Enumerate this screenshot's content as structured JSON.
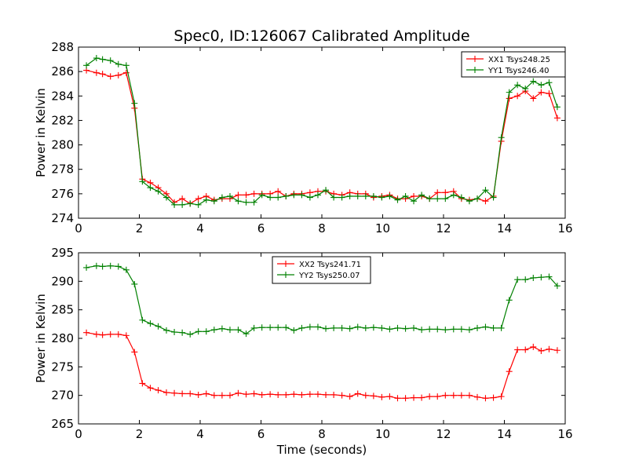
{
  "title": "Spec0, ID:126067 Calibrated Amplitude",
  "chart_data": [
    {
      "type": "line",
      "ylabel": "Power in Kelvin",
      "xlabel": "",
      "xlim": [
        0,
        16
      ],
      "ylim": [
        274,
        288
      ],
      "xticks": [
        "0",
        "2",
        "4",
        "6",
        "8",
        "10",
        "12",
        "14",
        "16"
      ],
      "yticks": [
        "274",
        "276",
        "278",
        "280",
        "282",
        "284",
        "286",
        "288"
      ],
      "grid": false,
      "legend_position": "top-right",
      "x": [
        0.26,
        0.59,
        0.79,
        1.05,
        1.31,
        1.57,
        1.84,
        2.1,
        2.36,
        2.62,
        2.89,
        3.15,
        3.41,
        3.67,
        3.94,
        4.2,
        4.46,
        4.72,
        4.98,
        5.25,
        5.51,
        5.77,
        6.03,
        6.3,
        6.56,
        6.82,
        7.08,
        7.34,
        7.61,
        7.87,
        8.13,
        8.39,
        8.66,
        8.92,
        9.18,
        9.44,
        9.7,
        9.97,
        10.23,
        10.49,
        10.75,
        11.02,
        11.28,
        11.54,
        11.8,
        12.06,
        12.33,
        12.59,
        12.85,
        13.11,
        13.38,
        13.64,
        13.9,
        14.16,
        14.43,
        14.69,
        14.95,
        15.21,
        15.47,
        15.74
      ],
      "series": [
        {
          "name": "XX1 Tsys248.25",
          "color": "#ff0000",
          "values": [
            286.1,
            285.9,
            285.8,
            285.6,
            285.7,
            285.9,
            283.0,
            277.2,
            276.9,
            276.5,
            276.0,
            275.3,
            275.6,
            275.2,
            275.6,
            275.8,
            275.5,
            275.6,
            275.6,
            275.9,
            275.9,
            276.0,
            276.0,
            276.0,
            276.2,
            275.8,
            276.0,
            276.0,
            276.1,
            276.2,
            276.2,
            276.0,
            275.9,
            276.1,
            276.0,
            276.0,
            275.7,
            275.8,
            275.9,
            275.6,
            275.6,
            275.8,
            275.8,
            275.6,
            276.1,
            276.1,
            276.2,
            275.6,
            275.5,
            275.6,
            275.4,
            275.8,
            280.3,
            283.8,
            284.0,
            284.4,
            283.8,
            284.3,
            284.2,
            282.2
          ]
        },
        {
          "name": "YY1 Tsys246.40",
          "color": "#008000",
          "values": [
            286.5,
            287.1,
            287.0,
            286.9,
            286.6,
            286.5,
            283.4,
            277.0,
            276.5,
            276.2,
            275.7,
            275.1,
            275.1,
            275.2,
            275.1,
            275.5,
            275.4,
            275.7,
            275.8,
            275.4,
            275.3,
            275.3,
            275.9,
            275.7,
            275.7,
            275.8,
            275.9,
            275.9,
            275.7,
            275.9,
            276.3,
            275.7,
            275.7,
            275.8,
            275.8,
            275.8,
            275.8,
            275.7,
            275.8,
            275.5,
            275.8,
            275.4,
            275.9,
            275.6,
            275.6,
            275.6,
            275.9,
            275.7,
            275.4,
            275.6,
            276.3,
            275.7,
            280.6,
            284.3,
            284.9,
            284.6,
            285.2,
            284.9,
            285.1,
            283.1
          ]
        }
      ]
    },
    {
      "type": "line",
      "ylabel": "Power in Kelvin",
      "xlabel": "Time (seconds)",
      "xlim": [
        0,
        16
      ],
      "ylim": [
        265,
        295
      ],
      "xticks": [
        "0",
        "2",
        "4",
        "6",
        "8",
        "10",
        "12",
        "14",
        "16"
      ],
      "yticks": [
        "265",
        "270",
        "275",
        "280",
        "285",
        "290",
        "295"
      ],
      "grid": false,
      "legend_position": "top-center",
      "x": [
        0.26,
        0.59,
        0.79,
        1.05,
        1.31,
        1.57,
        1.84,
        2.1,
        2.36,
        2.62,
        2.89,
        3.15,
        3.41,
        3.67,
        3.94,
        4.2,
        4.46,
        4.72,
        4.98,
        5.25,
        5.51,
        5.77,
        6.03,
        6.3,
        6.56,
        6.82,
        7.08,
        7.34,
        7.61,
        7.87,
        8.13,
        8.39,
        8.66,
        8.92,
        9.18,
        9.44,
        9.7,
        9.97,
        10.23,
        10.49,
        10.75,
        11.02,
        11.28,
        11.54,
        11.8,
        12.06,
        12.33,
        12.59,
        12.85,
        13.11,
        13.38,
        13.64,
        13.9,
        14.16,
        14.43,
        14.69,
        14.95,
        15.21,
        15.47,
        15.74
      ],
      "series": [
        {
          "name": "XX2 Tsys241.71",
          "color": "#ff0000",
          "values": [
            281.0,
            280.7,
            280.6,
            280.7,
            280.7,
            280.5,
            277.6,
            272.1,
            271.3,
            270.9,
            270.5,
            270.4,
            270.3,
            270.3,
            270.1,
            270.3,
            270.0,
            270.0,
            270.0,
            270.4,
            270.2,
            270.3,
            270.1,
            270.2,
            270.1,
            270.1,
            270.2,
            270.1,
            270.2,
            270.2,
            270.1,
            270.1,
            270.0,
            269.8,
            270.3,
            270.0,
            269.9,
            269.7,
            269.8,
            269.5,
            269.5,
            269.6,
            269.6,
            269.8,
            269.8,
            270.0,
            270.0,
            270.0,
            270.0,
            269.7,
            269.5,
            269.6,
            269.8,
            274.2,
            278.0,
            278.0,
            278.5,
            277.8,
            278.1,
            277.9
          ]
        },
        {
          "name": "YY2 Tsys250.07",
          "color": "#008000",
          "values": [
            292.4,
            292.7,
            292.6,
            292.7,
            292.6,
            292.0,
            289.5,
            283.2,
            282.6,
            282.1,
            281.4,
            281.1,
            281.0,
            280.7,
            281.2,
            281.2,
            281.5,
            281.7,
            281.5,
            281.5,
            280.8,
            281.8,
            281.9,
            281.9,
            281.9,
            281.9,
            281.4,
            281.8,
            282.0,
            282.0,
            281.7,
            281.8,
            281.8,
            281.7,
            282.0,
            281.8,
            281.9,
            281.8,
            281.6,
            281.8,
            281.7,
            281.8,
            281.5,
            281.6,
            281.6,
            281.5,
            281.6,
            281.6,
            281.5,
            281.8,
            282.0,
            281.8,
            281.8,
            286.7,
            290.3,
            290.3,
            290.6,
            290.7,
            290.8,
            289.2
          ]
        }
      ]
    }
  ]
}
